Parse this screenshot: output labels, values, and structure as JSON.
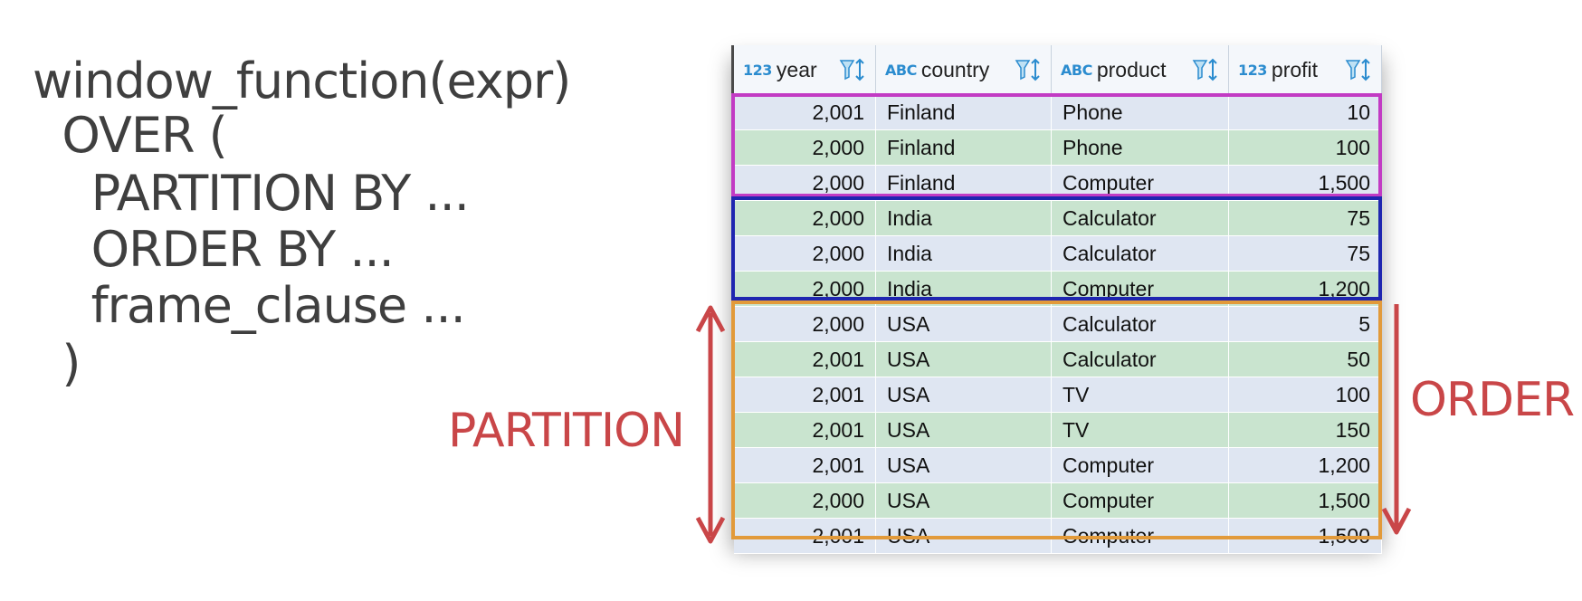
{
  "code": {
    "lines": [
      "window_function(expr)",
      "  OVER (",
      "    PARTITION BY ...",
      "    ORDER BY ...",
      "    frame_clause ...",
      "  )"
    ]
  },
  "table": {
    "columns": [
      {
        "type": "123",
        "name": "year"
      },
      {
        "type": "ABC",
        "name": "country"
      },
      {
        "type": "ABC",
        "name": "product"
      },
      {
        "type": "123",
        "name": "profit"
      }
    ],
    "rows": [
      {
        "year": "2,001",
        "country": "Finland",
        "product": "Phone",
        "profit": "10"
      },
      {
        "year": "2,000",
        "country": "Finland",
        "product": "Phone",
        "profit": "100"
      },
      {
        "year": "2,000",
        "country": "Finland",
        "product": "Computer",
        "profit": "1,500"
      },
      {
        "year": "2,000",
        "country": "India",
        "product": "Calculator",
        "profit": "75"
      },
      {
        "year": "2,000",
        "country": "India",
        "product": "Calculator",
        "profit": "75"
      },
      {
        "year": "2,000",
        "country": "India",
        "product": "Computer",
        "profit": "1,200"
      },
      {
        "year": "2,000",
        "country": "USA",
        "product": "Calculator",
        "profit": "5"
      },
      {
        "year": "2,001",
        "country": "USA",
        "product": "Calculator",
        "profit": "50"
      },
      {
        "year": "2,001",
        "country": "USA",
        "product": "TV",
        "profit": "100"
      },
      {
        "year": "2,001",
        "country": "USA",
        "product": "TV",
        "profit": "150"
      },
      {
        "year": "2,001",
        "country": "USA",
        "product": "Computer",
        "profit": "1,200"
      },
      {
        "year": "2,000",
        "country": "USA",
        "product": "Computer",
        "profit": "1,500"
      },
      {
        "year": "2,001",
        "country": "USA",
        "product": "Computer",
        "profit": "1,500"
      }
    ]
  },
  "labels": {
    "partition": "PARTITION",
    "order": "ORDER"
  },
  "colors": {
    "accent_red": "#c94648",
    "partition_finland": "#c23bc4",
    "partition_india": "#1f26b0",
    "partition_usa": "#e29a3a",
    "row_blue": "#dfe6f2",
    "row_green": "#c9e4cf",
    "type_badge": "#2b8ccf"
  },
  "icons": {
    "filter_sort": "filter-sort-icon"
  }
}
